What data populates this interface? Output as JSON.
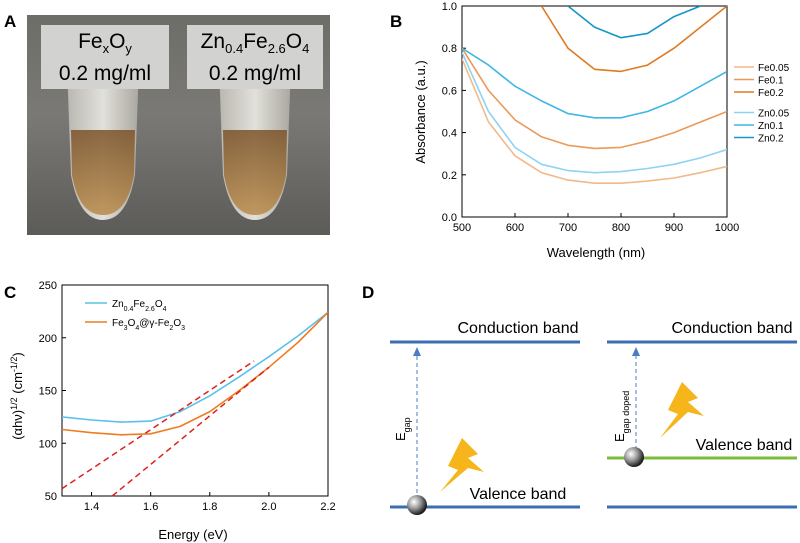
{
  "panels": {
    "a": "A",
    "b": "B",
    "c": "C",
    "d": "D"
  },
  "photo": {
    "left_label": {
      "line1_base": "Fe",
      "line1_sub1": "x",
      "line1_mid": "O",
      "line1_sub2": "y",
      "line2": "0.2 mg/ml"
    },
    "right_label": {
      "line1_a": "Zn",
      "line1_sub1": "0.4",
      "line1_b": "Fe",
      "line1_sub2": "2.6",
      "line1_c": "O",
      "line1_sub3": "4",
      "line2": "0.2 mg/ml"
    }
  },
  "chart_data": [
    {
      "panel": "B",
      "type": "line",
      "xlabel": "Wavelength (nm)",
      "ylabel": "Absorbance (a.u.)",
      "xlim": [
        500,
        1000
      ],
      "ylim": [
        0,
        1.0
      ],
      "xticks": [
        500,
        600,
        700,
        800,
        900,
        1000
      ],
      "yticks": [
        0.0,
        0.2,
        0.4,
        0.6,
        0.8,
        1.0
      ],
      "x": [
        500,
        550,
        600,
        650,
        700,
        750,
        800,
        850,
        900,
        950,
        1000
      ],
      "series": [
        {
          "name": "Fe0.05",
          "color": "#f2b98a",
          "values": [
            0.75,
            0.45,
            0.29,
            0.21,
            0.175,
            0.16,
            0.16,
            0.17,
            0.185,
            0.21,
            0.24
          ]
        },
        {
          "name": "Fe0.1",
          "color": "#ea9a5a",
          "values": [
            0.8,
            0.6,
            0.46,
            0.38,
            0.34,
            0.325,
            0.33,
            0.36,
            0.4,
            0.45,
            0.5
          ]
        },
        {
          "name": "Fe0.2",
          "color": "#e07a22",
          "values": [
            null,
            null,
            null,
            1.0,
            0.8,
            0.7,
            0.69,
            0.72,
            0.8,
            0.9,
            1.0
          ]
        },
        {
          "name": "Zn0.05",
          "color": "#8fd3f4",
          "values": [
            0.78,
            0.5,
            0.33,
            0.25,
            0.22,
            0.21,
            0.215,
            0.23,
            0.25,
            0.28,
            0.32
          ]
        },
        {
          "name": "Zn0.1",
          "color": "#41b6e6",
          "values": [
            0.8,
            0.72,
            0.62,
            0.55,
            0.49,
            0.47,
            0.47,
            0.5,
            0.55,
            0.62,
            0.69
          ]
        },
        {
          "name": "Zn0.2",
          "color": "#1497c8",
          "values": [
            null,
            null,
            null,
            null,
            1.0,
            0.9,
            0.85,
            0.87,
            0.95,
            1.0,
            null
          ]
        }
      ]
    },
    {
      "panel": "C",
      "type": "line",
      "xlabel": "Energy (eV)",
      "ylabel": "(αhν)¹ᐟ² (cm⁻¹ᐟ²)",
      "ylabel_parts": {
        "a": "(αhν)",
        "sup1": "1/2",
        "b": " (cm",
        "sup2": "-1/2",
        "c": ")"
      },
      "xlim": [
        1.3,
        2.2
      ],
      "ylim": [
        50,
        250
      ],
      "xticks": [
        1.4,
        1.6,
        1.8,
        2.0,
        2.2
      ],
      "xtick_labels": [
        "1.4",
        "1.6",
        "1.8",
        "2.0",
        "2.2"
      ],
      "yticks": [
        50,
        100,
        150,
        200,
        250
      ],
      "x": [
        1.3,
        1.4,
        1.5,
        1.6,
        1.7,
        1.8,
        1.9,
        2.0,
        2.1,
        2.2
      ],
      "series": [
        {
          "name": "Zn0.4Fe2.6O4",
          "color": "#5bc0eb",
          "values": [
            125,
            122,
            120,
            121,
            130,
            145,
            163,
            182,
            202,
            224
          ]
        },
        {
          "name": "Fe3O4@γ-Fe2O3",
          "color": "#ee7d1f",
          "values": [
            113,
            110,
            108,
            109,
            116,
            130,
            150,
            172,
            196,
            224
          ]
        }
      ],
      "legend": {
        "zn": {
          "a": "Zn",
          "s1": "0.4",
          "b": "Fe",
          "s2": "2.6",
          "c": "O",
          "s3": "4"
        },
        "fe": {
          "a": "Fe",
          "s1": "3",
          "b": "O",
          "s2": "4",
          "c": "@γ-Fe",
          "s3": "2",
          "d": "O",
          "s4": "3"
        }
      },
      "fits": [
        {
          "name": "fit1",
          "color": "#e02020",
          "x": [
            1.3,
            1.95
          ],
          "y": [
            57,
            178
          ]
        },
        {
          "name": "fit2",
          "color": "#e02020",
          "x": [
            1.47,
            2.0
          ],
          "y": [
            50,
            172
          ]
        }
      ]
    }
  ],
  "diagram_d": {
    "left": {
      "conduction": "Conduction band",
      "valence": "Valence band",
      "egap_base": "E",
      "egap_sub": "gap"
    },
    "right": {
      "conduction": "Conduction band",
      "valence": "Valence band",
      "egap_base": "E",
      "egap_sub": "gap doped"
    },
    "band_color": "#3b6db3",
    "doped_band_color": "#7cbc3a",
    "arrow_color": "#4c7cc4",
    "bolt_color": "#f6b51a"
  }
}
